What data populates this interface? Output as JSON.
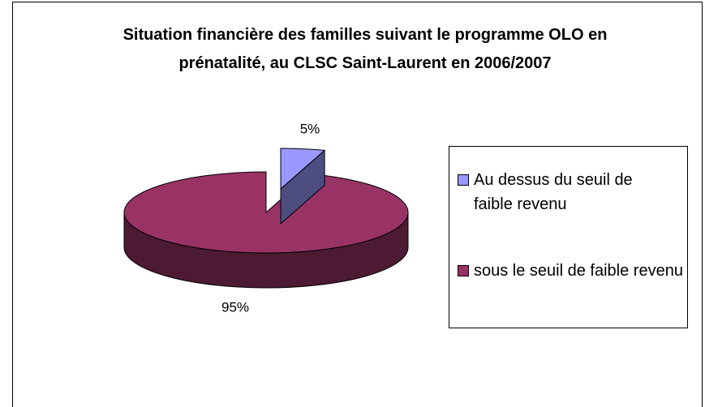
{
  "chart_data": {
    "type": "pie",
    "title": "Situation financière des familles suivant le programme OLO en prénatalité, au CLSC Saint-Laurent en 2006/2007",
    "categories": [
      "Au dessus du seuil de faible revenu",
      "sous le seuil de faible revenu"
    ],
    "values": [
      5,
      95
    ],
    "value_labels": [
      "5%",
      "95%"
    ],
    "colors": [
      "#9999ff",
      "#993366"
    ],
    "legend": "right"
  }
}
